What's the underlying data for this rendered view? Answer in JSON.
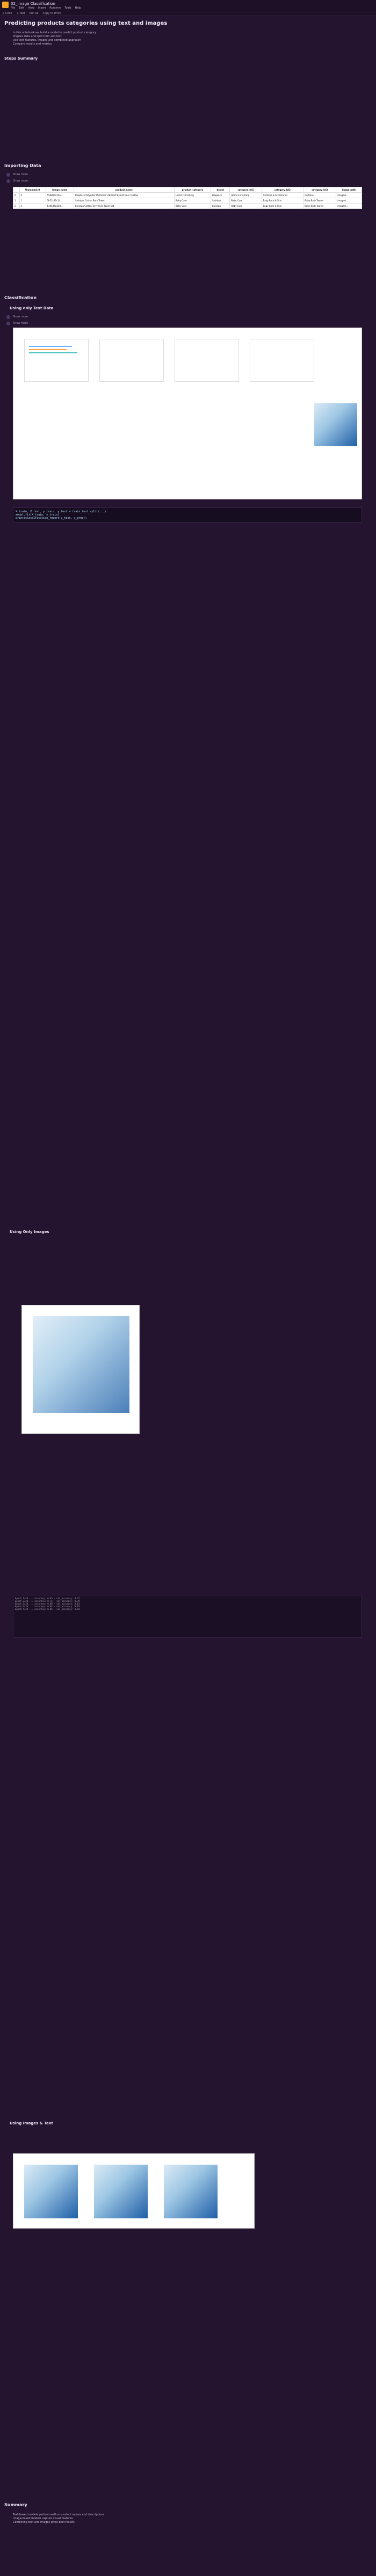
{
  "app": {
    "title": "02_Image Classification",
    "menu": [
      "File",
      "Edit",
      "View",
      "Insert",
      "Runtime",
      "Tools",
      "Help"
    ],
    "toolbar": [
      "+ Code",
      "+ Text",
      "Run all",
      "Copy to Drive"
    ]
  },
  "sections": [
    {
      "title": "Predicting products categories using text and images",
      "level": "h1"
    },
    {
      "title": "Steps Summary",
      "level": "h3"
    },
    {
      "title": "Importing Data",
      "level": "h2"
    },
    {
      "title": "Classification",
      "level": "h2"
    },
    {
      "title": "Using only Text Data",
      "level": "h3"
    },
    {
      "title": "Using Only Images",
      "level": "h3"
    },
    {
      "title": "Using Images & Text",
      "level": "h3"
    },
    {
      "title": "Summary",
      "level": "h2"
    }
  ],
  "show_more": "Show more",
  "summary_lines": [
    "In this notebook we build a model to predict product category",
    "Prepare data and split train and test",
    "Use text features, images and combined approach",
    "Compare results and metrics"
  ],
  "table": {
    "headers": [
      "",
      "Unnamed: 0",
      "image_name",
      "product_name",
      "product_category",
      "brand",
      "category_lvl1",
      "category_lvl2",
      "category_lvl3",
      "image_path"
    ],
    "rows": [
      [
        "0",
        "0",
        "55b85ea15a...",
        "Elegance Polyester Multicolor Abstract Eyelet Door Curtain",
        "Home Furnishing",
        "Elegance",
        "Home Furnishing",
        "Curtains & Accessories",
        "Curtains",
        "images/..."
      ],
      [
        "1",
        "1",
        "7b72c92c2f...",
        "Sathiyas Cotton Bath Towel",
        "Baby Care",
        "Sathiyas",
        "Baby Care",
        "Baby Bath & Skin",
        "Baby Bath Towels",
        "images/..."
      ],
      [
        "2",
        "2",
        "64d5d4a258...",
        "Eurospa Cotton Terry Face Towel Set",
        "Baby Care",
        "Eurospa",
        "Baby Care",
        "Baby Bath & Skin",
        "Baby Bath Towels",
        "images/..."
      ]
    ]
  },
  "code_snippets": [
    "X_train, X_test, y_train, y_test = train_test_split(...)",
    "model.fit(X_train, y_train)",
    "print(classification_report(y_test, y_pred))"
  ],
  "console_lines": [
    "Epoch 1/20 ... accuracy: 0.65 - val_accuracy: 0.72",
    "Epoch 2/20 ... accuracy: 0.74 - val_accuracy: 0.78",
    "Epoch 3/20 ... accuracy: 0.80 - val_accuracy: 0.81",
    "Epoch 4/20 ... accuracy: 0.84 - val_accuracy: 0.83",
    "Epoch 5/20 ... accuracy: 0.86 - val_accuracy: 0.84"
  ],
  "final_summary": [
    "Text-based models perform well on product names and descriptions",
    "Image-based models capture visual features",
    "Combining text and images gives best results"
  ]
}
